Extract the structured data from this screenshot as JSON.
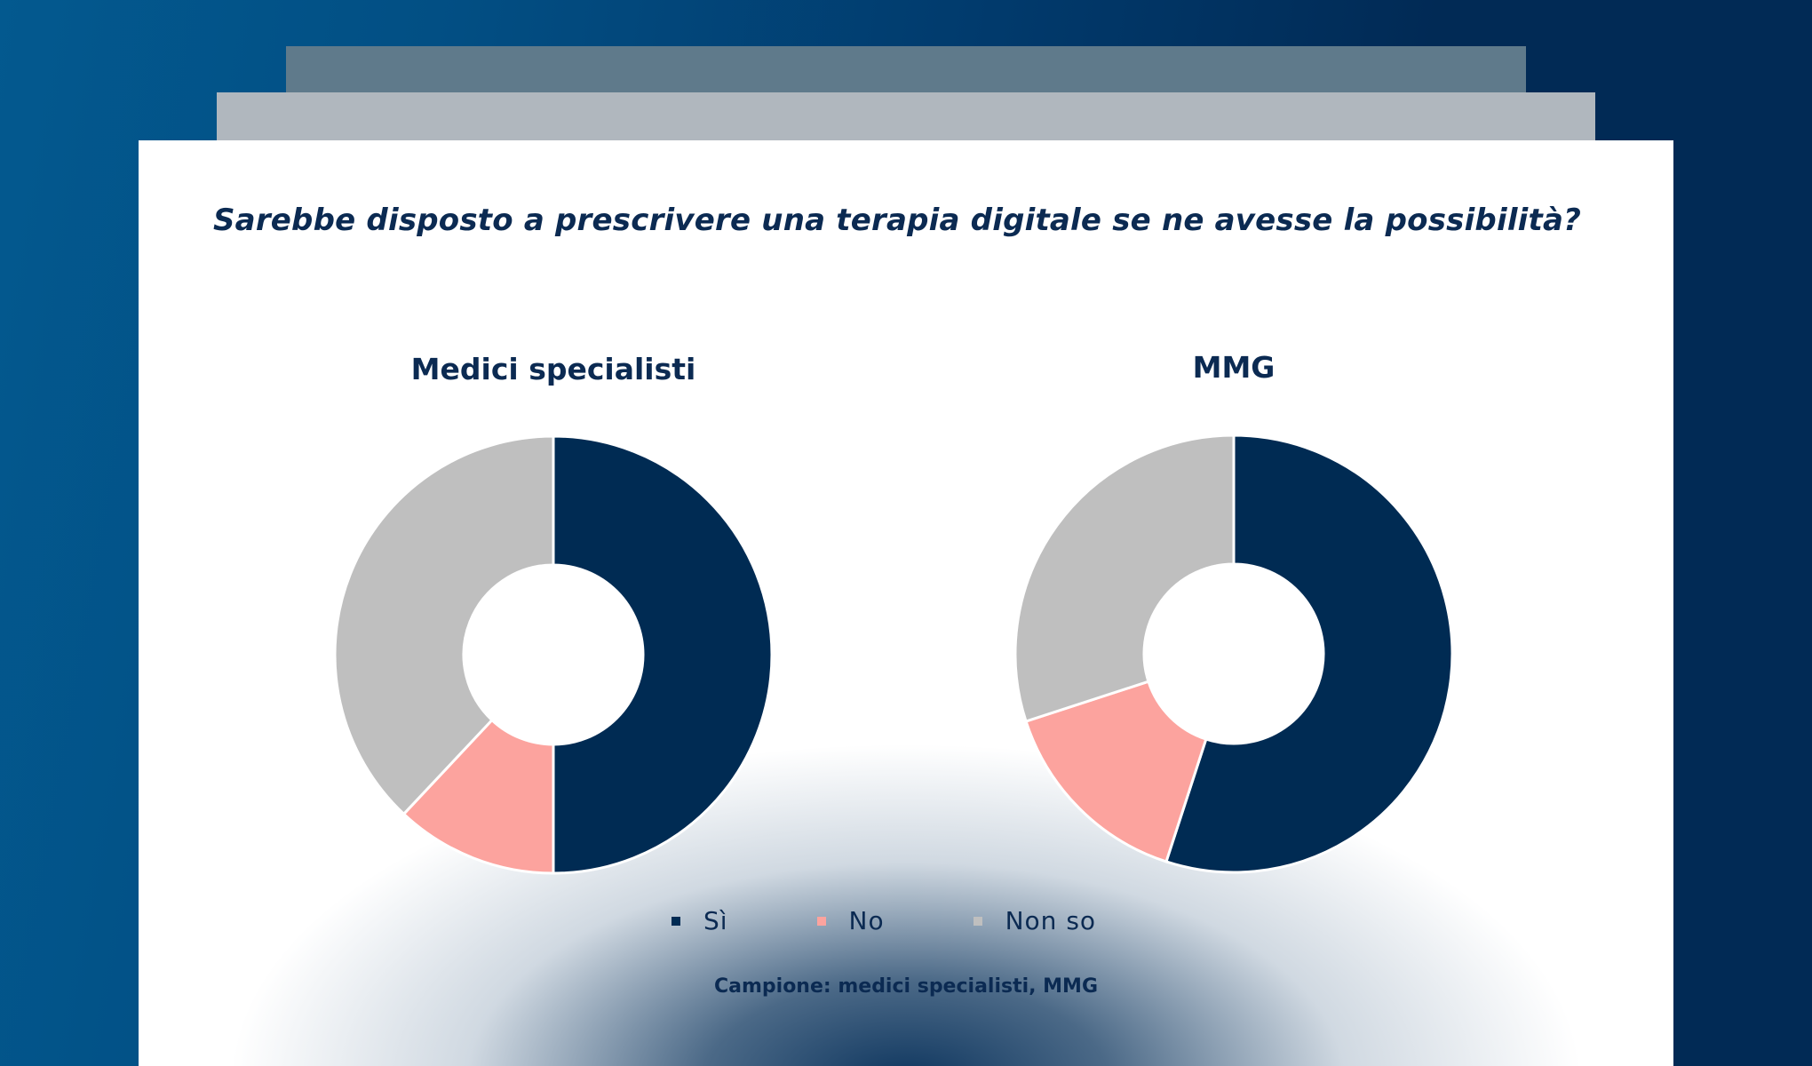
{
  "colors": {
    "background_start": "#03598f",
    "background_end": "#012a55",
    "card": "#ffffff",
    "text": "#0b2a52"
  },
  "question": "Sarebbe disposto a prescrivere una terapia digitale se ne avesse la possibilità?",
  "footer": "Campione: medici specialisti, MMG",
  "legend": [
    {
      "label": "Sì",
      "color": "#002b53"
    },
    {
      "label": "No",
      "color": "#fca39e"
    },
    {
      "label": "Non so",
      "color": "#bfbfbf"
    }
  ],
  "chart_data": [
    {
      "type": "pie",
      "variant": "donut",
      "title": "Medici specialisti",
      "categories": [
        "Sì",
        "No",
        "Non so"
      ],
      "values": [
        50,
        12,
        38
      ],
      "unit": "%",
      "colors": [
        "#002b53",
        "#fca39e",
        "#bfbfbf"
      ],
      "start_angle_deg": 0,
      "direction": "clockwise",
      "legend_position": "bottom"
    },
    {
      "type": "pie",
      "variant": "donut",
      "title": "MMG",
      "categories": [
        "Sì",
        "No",
        "Non so"
      ],
      "values": [
        55,
        15,
        30
      ],
      "unit": "%",
      "colors": [
        "#002b53",
        "#fca39e",
        "#bfbfbf"
      ],
      "start_angle_deg": 0,
      "direction": "clockwise",
      "legend_position": "bottom"
    }
  ]
}
